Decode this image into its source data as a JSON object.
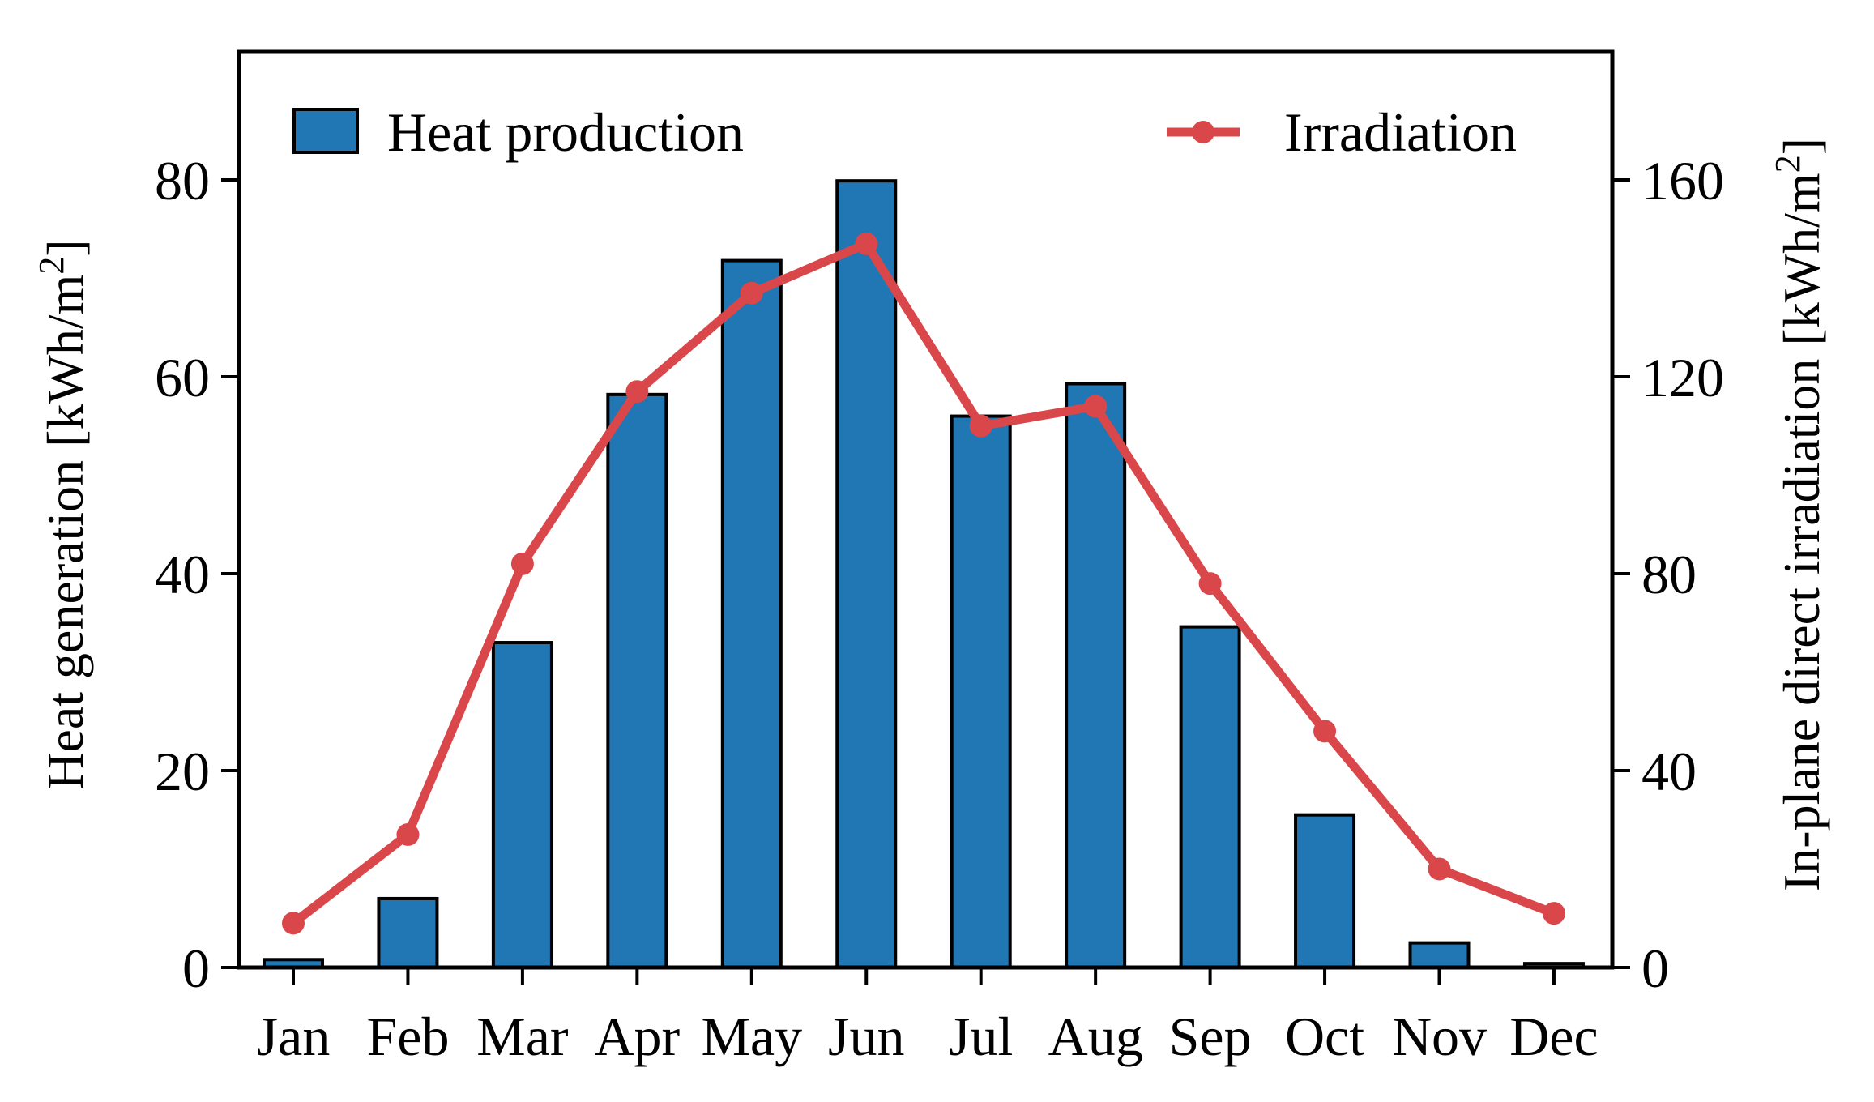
{
  "chart_data": {
    "type": "bar+line",
    "categories": [
      "Jan",
      "Feb",
      "Mar",
      "Apr",
      "May",
      "Jun",
      "Jul",
      "Aug",
      "Sep",
      "Oct",
      "Nov",
      "Dec"
    ],
    "series": [
      {
        "name": "Heat production",
        "type": "bar",
        "axis": "left",
        "color": "#2077b4",
        "values": [
          0.8,
          7.0,
          33.0,
          58.2,
          71.8,
          79.9,
          56.0,
          59.3,
          34.6,
          15.5,
          2.5,
          0.4
        ]
      },
      {
        "name": "Irradiation",
        "type": "line",
        "axis": "right",
        "color": "#d9474b",
        "values": [
          9,
          27,
          82,
          117,
          137,
          147,
          110,
          114,
          78,
          48,
          20,
          11
        ]
      }
    ],
    "ylabel_left": "Heat generation [kWh/m",
    "ylabel_right": "In-plane direct irradiation [kWh/m",
    "ylabel_unit_sup": "2",
    "ylabel_unit_close": "]",
    "ylim_left": [
      0,
      93
    ],
    "ylim_right": [
      0,
      186
    ],
    "yticks_left": [
      "0",
      "20",
      "40",
      "60",
      "80"
    ],
    "yticks_left_values": [
      0,
      20,
      40,
      60,
      80
    ],
    "yticks_right": [
      "0",
      "40",
      "80",
      "120",
      "160"
    ],
    "yticks_right_values": [
      0,
      40,
      80,
      120,
      160
    ],
    "legend": [
      {
        "label": "Heat production",
        "position": "top-left"
      },
      {
        "label": "Irradiation",
        "position": "top-right"
      }
    ],
    "grid": false
  }
}
